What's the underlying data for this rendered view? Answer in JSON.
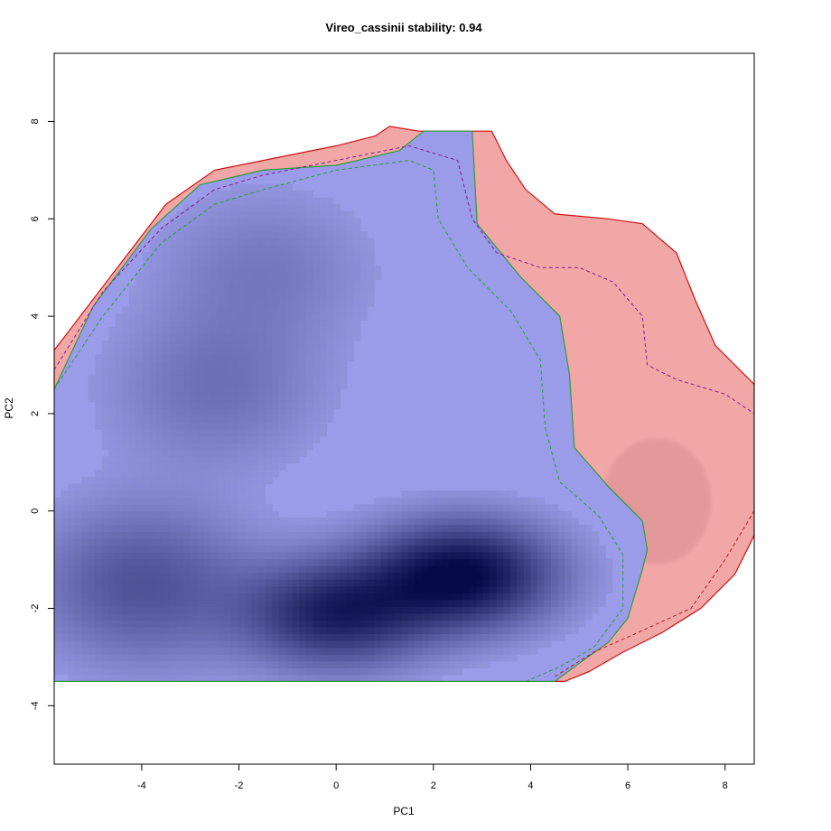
{
  "chart_data": {
    "type": "heatmap",
    "title": "Vireo_cassinii stability: 0.94",
    "xlabel": "PC1",
    "ylabel": "PC2",
    "xlim": [
      -5.8,
      8.6
    ],
    "ylim": [
      -5.2,
      9.4
    ],
    "x_ticks": [
      -4,
      -2,
      0,
      2,
      4,
      6,
      8
    ],
    "y_ticks": [
      -4,
      -2,
      0,
      2,
      4,
      6,
      8
    ],
    "x_tick_labels": [
      "-4",
      "-2",
      "0",
      "2",
      "4",
      "6",
      "8"
    ],
    "y_tick_labels": [
      "-4",
      "-2",
      "0",
      "2",
      "4",
      "6",
      "8"
    ],
    "density_peaks": [
      {
        "x": 2.6,
        "y": -1.3,
        "weight": 1.0
      },
      {
        "x": 0.0,
        "y": -2.1,
        "weight": 0.8
      },
      {
        "x": -4.0,
        "y": -1.5,
        "weight": 0.45
      },
      {
        "x": -2.5,
        "y": 2.5,
        "weight": 0.25
      },
      {
        "x": -1.5,
        "y": 5.0,
        "weight": 0.2
      }
    ],
    "regions": [
      {
        "fill": "#9a9cea",
        "outline": "#2e9a3e",
        "polygon": [
          [
            -5.8,
            2.5
          ],
          [
            -5.0,
            4.2
          ],
          [
            -3.8,
            5.8
          ],
          [
            -2.8,
            6.7
          ],
          [
            -1.5,
            7.0
          ],
          [
            0.0,
            7.1
          ],
          [
            1.3,
            7.4
          ],
          [
            1.8,
            7.8
          ],
          [
            2.8,
            7.8
          ],
          [
            2.9,
            5.9
          ],
          [
            3.8,
            4.8
          ],
          [
            4.6,
            4.0
          ],
          [
            4.8,
            2.8
          ],
          [
            4.9,
            1.3
          ],
          [
            5.6,
            0.5
          ],
          [
            6.3,
            -0.2
          ],
          [
            6.4,
            -0.8
          ],
          [
            6.3,
            -1.2
          ],
          [
            6.0,
            -2.2
          ],
          [
            5.6,
            -2.7
          ],
          [
            4.9,
            -3.2
          ],
          [
            4.5,
            -3.5
          ],
          [
            -5.8,
            -3.5
          ]
        ]
      },
      {
        "fill": "#f2a7a7",
        "outline": "#d01010",
        "polygon": [
          [
            -5.8,
            3.3
          ],
          [
            -4.5,
            5.0
          ],
          [
            -3.5,
            6.3
          ],
          [
            -2.5,
            7.0
          ],
          [
            -1.5,
            7.2
          ],
          [
            0.0,
            7.5
          ],
          [
            0.8,
            7.7
          ],
          [
            1.1,
            7.9
          ],
          [
            1.7,
            7.8
          ],
          [
            2.9,
            7.8
          ],
          [
            3.2,
            7.8
          ],
          [
            3.5,
            7.2
          ],
          [
            3.9,
            6.6
          ],
          [
            4.5,
            6.1
          ],
          [
            5.6,
            6.0
          ],
          [
            6.3,
            5.9
          ],
          [
            7.0,
            5.3
          ],
          [
            7.4,
            4.3
          ],
          [
            7.8,
            3.4
          ],
          [
            8.2,
            3.0
          ],
          [
            8.6,
            2.6
          ],
          [
            8.6,
            -0.5
          ],
          [
            8.2,
            -1.3
          ],
          [
            7.5,
            -2.0
          ],
          [
            6.7,
            -2.5
          ],
          [
            5.9,
            -2.9
          ],
          [
            5.2,
            -3.3
          ],
          [
            4.7,
            -3.5
          ],
          [
            4.3,
            -3.5
          ],
          [
            -5.8,
            -3.5
          ]
        ]
      }
    ],
    "contours": [
      {
        "color": "#2e9a3e",
        "style": "dashed",
        "points": [
          [
            -5.8,
            2.5
          ],
          [
            -4.8,
            4.0
          ],
          [
            -3.6,
            5.5
          ],
          [
            -2.5,
            6.3
          ],
          [
            -1.5,
            6.6
          ],
          [
            0.0,
            7.0
          ],
          [
            1.5,
            7.2
          ],
          [
            2.0,
            7.0
          ],
          [
            2.1,
            6.0
          ],
          [
            2.7,
            5.0
          ],
          [
            3.6,
            4.1
          ],
          [
            4.2,
            3.1
          ],
          [
            4.3,
            1.7
          ],
          [
            4.6,
            0.6
          ],
          [
            5.4,
            -0.1
          ],
          [
            5.9,
            -0.9
          ],
          [
            5.9,
            -2.0
          ],
          [
            5.3,
            -2.8
          ],
          [
            4.6,
            -3.2
          ],
          [
            3.9,
            -3.5
          ]
        ]
      },
      {
        "color": "#8a1a8a",
        "style": "dashed",
        "points": [
          [
            -5.8,
            2.9
          ],
          [
            -4.8,
            4.5
          ],
          [
            -3.6,
            5.8
          ],
          [
            -2.5,
            6.6
          ],
          [
            -1.5,
            6.9
          ],
          [
            -0.5,
            7.1
          ],
          [
            0.5,
            7.3
          ],
          [
            1.5,
            7.5
          ],
          [
            2.5,
            7.2
          ],
          [
            2.8,
            6.0
          ],
          [
            3.3,
            5.3
          ],
          [
            4.2,
            5.0
          ],
          [
            5.0,
            5.0
          ],
          [
            5.7,
            4.7
          ],
          [
            6.3,
            4.0
          ],
          [
            6.4,
            3.0
          ],
          [
            7.0,
            2.7
          ],
          [
            8.0,
            2.4
          ],
          [
            8.6,
            2.0
          ]
        ]
      },
      {
        "color": "#c01818",
        "style": "dashed",
        "points": [
          [
            4.5,
            -3.4
          ],
          [
            5.3,
            -2.9
          ],
          [
            6.2,
            -2.5
          ],
          [
            7.3,
            -2.0
          ],
          [
            8.0,
            -1.0
          ],
          [
            8.6,
            0.0
          ]
        ]
      }
    ],
    "colors": {
      "density_low": "#a2a4ee",
      "density_high": "#060a48",
      "overlap_fill": "#9a9cea",
      "range_fill": "#f2a7a7",
      "range_density": "#d88f90"
    }
  }
}
